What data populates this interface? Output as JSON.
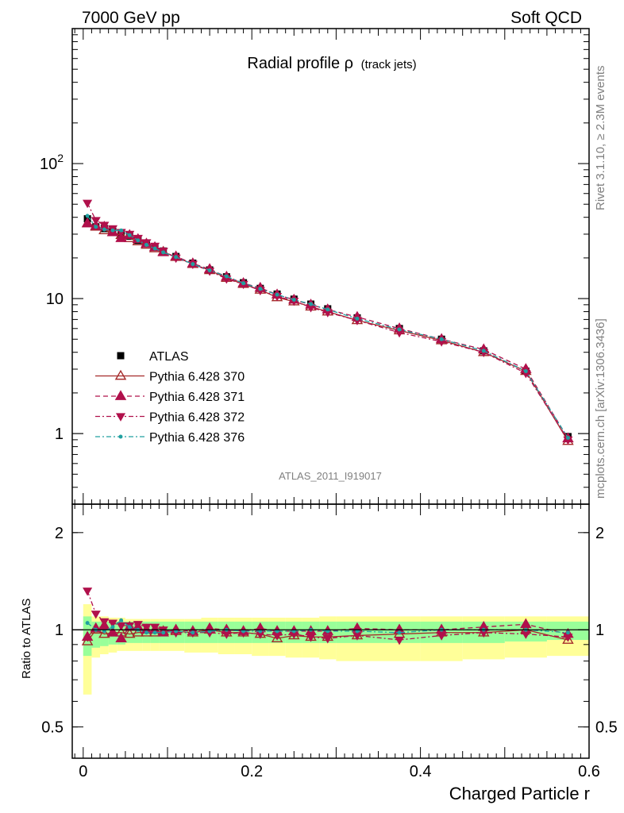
{
  "header": {
    "left": "7000 GeV pp",
    "right": "Soft QCD"
  },
  "side_text": {
    "top": "Rivet 3.1.10, ≥ 2.3M events",
    "bottom": "mcplots.cern.ch [arXiv:1306.3436]"
  },
  "chart_data": [
    {
      "type": "line",
      "panel": "main",
      "title": "Radial profile ρ",
      "title_suffix": "(track jets)",
      "watermark": "ATLAS_2011_I919017",
      "xlabel": "Charged Particle r",
      "ylabel": "",
      "yscale": "log",
      "xlim": [
        -0.013,
        0.6
      ],
      "ylim": [
        0.3,
        1000
      ],
      "yticks": [
        {
          "v": 1,
          "label": "1"
        },
        {
          "v": 10,
          "label": "10"
        },
        {
          "v": 100,
          "label": "10",
          "sup": "2"
        }
      ],
      "x": [
        0.005,
        0.015,
        0.025,
        0.035,
        0.045,
        0.055,
        0.065,
        0.075,
        0.085,
        0.095,
        0.11,
        0.13,
        0.15,
        0.17,
        0.19,
        0.21,
        0.23,
        0.25,
        0.27,
        0.29,
        0.325,
        0.375,
        0.425,
        0.475,
        0.525,
        0.575
      ],
      "legend": {
        "position": "lower-left"
      },
      "series": [
        {
          "name": "ATLAS",
          "marker": "square-filled",
          "color": "#000000",
          "line": "none",
          "values": [
            39,
            34,
            33,
            31.5,
            30,
            29,
            27,
            25.5,
            24,
            22.5,
            20.5,
            18.3,
            16.3,
            14.5,
            13.1,
            11.9,
            10.8,
            9.9,
            9.1,
            8.4,
            7.2,
            6.0,
            5.0,
            4.1,
            2.9,
            0.95
          ]
        },
        {
          "name": "Pythia 6.428 370",
          "marker": "triangle-up-open",
          "color": "#a52a2a",
          "line": "solid",
          "values": [
            36,
            34,
            32,
            31,
            29.5,
            28,
            26.5,
            25,
            23.5,
            22.2,
            20.3,
            18,
            16.2,
            14.2,
            12.8,
            11.6,
            10.2,
            9.5,
            8.7,
            8.0,
            6.9,
            5.8,
            4.9,
            4.0,
            2.9,
            0.88
          ]
        },
        {
          "name": "Pythia 6.428 371",
          "marker": "triangle-up-filled",
          "color": "#b0104b",
          "line": "dashed",
          "values": [
            36,
            34.5,
            34,
            31,
            28,
            29.5,
            27.5,
            25.5,
            24,
            22,
            20.5,
            18.2,
            16.5,
            14.5,
            13.0,
            12.0,
            10.7,
            9.8,
            9.0,
            8.3,
            7.3,
            6.0,
            5.0,
            4.2,
            3.0,
            0.92
          ]
        },
        {
          "name": "Pythia 6.428 372",
          "marker": "triangle-down-filled",
          "color": "#b0104b",
          "line": "dashdot",
          "values": [
            51,
            38,
            35,
            33,
            31,
            30,
            28,
            26,
            24.5,
            22.5,
            20,
            18,
            16,
            14,
            12.8,
            11.5,
            10.4,
            9.6,
            8.6,
            7.9,
            6.9,
            5.6,
            4.8,
            4.0,
            2.8,
            0.9
          ]
        },
        {
          "name": "Pythia 6.428 376",
          "marker": "dot",
          "color": "#20a0a0",
          "line": "dashdot",
          "values": [
            41,
            34,
            32.5,
            32,
            32,
            29.5,
            27,
            25,
            23.5,
            22,
            20.3,
            18,
            16.2,
            14.6,
            13,
            11.8,
            10.7,
            9.8,
            9.1,
            8.3,
            7.1,
            5.9,
            5.0,
            4.1,
            2.9,
            0.93
          ]
        }
      ]
    },
    {
      "type": "line",
      "panel": "ratio",
      "xlabel": "Charged Particle r",
      "ylabel": "Ratio to ATLAS",
      "yscale": "log",
      "xlim": [
        -0.013,
        0.6
      ],
      "ylim": [
        0.4,
        2.45
      ],
      "yticks": [
        {
          "v": 0.5,
          "label": "0.5"
        },
        {
          "v": 1,
          "label": "1"
        },
        {
          "v": 2,
          "label": "2"
        }
      ],
      "xticks": [
        {
          "v": 0,
          "label": "0"
        },
        {
          "v": 0.2,
          "label": "0.2"
        },
        {
          "v": 0.4,
          "label": "0.4"
        },
        {
          "v": 0.6,
          "label": "0.6"
        }
      ],
      "bins": [
        0,
        0.01,
        0.02,
        0.03,
        0.04,
        0.05,
        0.06,
        0.07,
        0.08,
        0.09,
        0.1,
        0.12,
        0.14,
        0.16,
        0.18,
        0.2,
        0.22,
        0.24,
        0.26,
        0.28,
        0.3,
        0.35,
        0.4,
        0.45,
        0.5,
        0.55,
        0.6
      ],
      "bands": {
        "green": {
          "color": "#99ff99",
          "lo": [
            0.83,
            0.88,
            0.89,
            0.9,
            0.9,
            0.91,
            0.91,
            0.91,
            0.91,
            0.91,
            0.91,
            0.91,
            0.91,
            0.91,
            0.91,
            0.91,
            0.91,
            0.91,
            0.91,
            0.91,
            0.91,
            0.91,
            0.91,
            0.91,
            0.92,
            0.93
          ],
          "hi": [
            1.1,
            1.06,
            1.06,
            1.06,
            1.06,
            1.06,
            1.06,
            1.06,
            1.06,
            1.06,
            1.06,
            1.06,
            1.06,
            1.06,
            1.06,
            1.06,
            1.06,
            1.06,
            1.06,
            1.06,
            1.06,
            1.06,
            1.06,
            1.06,
            1.06,
            1.06
          ]
        },
        "yellow": {
          "color": "#ffff99",
          "lo": [
            0.63,
            0.82,
            0.84,
            0.85,
            0.86,
            0.86,
            0.86,
            0.86,
            0.86,
            0.86,
            0.86,
            0.85,
            0.85,
            0.84,
            0.84,
            0.83,
            0.83,
            0.82,
            0.82,
            0.81,
            0.8,
            0.8,
            0.8,
            0.81,
            0.82,
            0.83
          ],
          "hi": [
            1.2,
            1.1,
            1.1,
            1.09,
            1.09,
            1.08,
            1.08,
            1.08,
            1.08,
            1.08,
            1.08,
            1.08,
            1.09,
            1.09,
            1.09,
            1.09,
            1.09,
            1.09,
            1.09,
            1.1,
            1.1,
            1.1,
            1.1,
            1.1,
            1.1,
            1.1
          ]
        }
      },
      "x": [
        0.005,
        0.015,
        0.025,
        0.035,
        0.045,
        0.055,
        0.065,
        0.075,
        0.085,
        0.095,
        0.11,
        0.13,
        0.15,
        0.17,
        0.19,
        0.21,
        0.23,
        0.25,
        0.27,
        0.29,
        0.325,
        0.375,
        0.425,
        0.475,
        0.525,
        0.575
      ],
      "series": [
        {
          "name": "Pythia 6.428 370",
          "marker": "triangle-up-open",
          "color": "#a52a2a",
          "line": "solid",
          "values": [
            0.92,
            1.0,
            0.97,
            0.98,
            0.98,
            0.97,
            0.98,
            0.98,
            0.98,
            0.99,
            0.99,
            0.98,
            1.0,
            0.98,
            0.98,
            0.97,
            0.94,
            0.96,
            0.95,
            0.95,
            0.96,
            0.97,
            0.98,
            0.98,
            1.0,
            0.93
          ]
        },
        {
          "name": "Pythia 6.428 371",
          "marker": "triangle-up-filled",
          "color": "#b0104b",
          "line": "dashed",
          "values": [
            0.95,
            1.01,
            1.03,
            0.98,
            0.94,
            1.02,
            1.02,
            1.0,
            1.0,
            0.98,
            1.0,
            0.99,
            1.01,
            1.0,
            0.99,
            1.01,
            0.99,
            0.99,
            0.99,
            0.99,
            1.01,
            1.0,
            1.0,
            1.02,
            1.04,
            0.97
          ]
        },
        {
          "name": "Pythia 6.428 372",
          "marker": "triangle-down-filled",
          "color": "#b0104b",
          "line": "dashdot",
          "values": [
            1.32,
            1.12,
            1.06,
            1.05,
            1.03,
            1.03,
            1.04,
            1.02,
            1.02,
            1.0,
            0.98,
            0.98,
            0.98,
            0.97,
            0.98,
            0.97,
            0.96,
            0.97,
            0.95,
            0.94,
            0.96,
            0.93,
            0.96,
            0.98,
            0.97,
            0.95
          ]
        },
        {
          "name": "Pythia 6.428 376",
          "marker": "dot",
          "color": "#20a0a0",
          "line": "dashdot",
          "values": [
            1.05,
            1.0,
            0.99,
            1.02,
            1.07,
            1.02,
            1.0,
            0.98,
            0.98,
            0.98,
            0.99,
            0.98,
            0.99,
            1.0,
            0.99,
            0.99,
            0.99,
            0.99,
            1.0,
            0.99,
            0.99,
            0.98,
            1.0,
            1.0,
            1.0,
            0.98
          ]
        }
      ]
    }
  ]
}
